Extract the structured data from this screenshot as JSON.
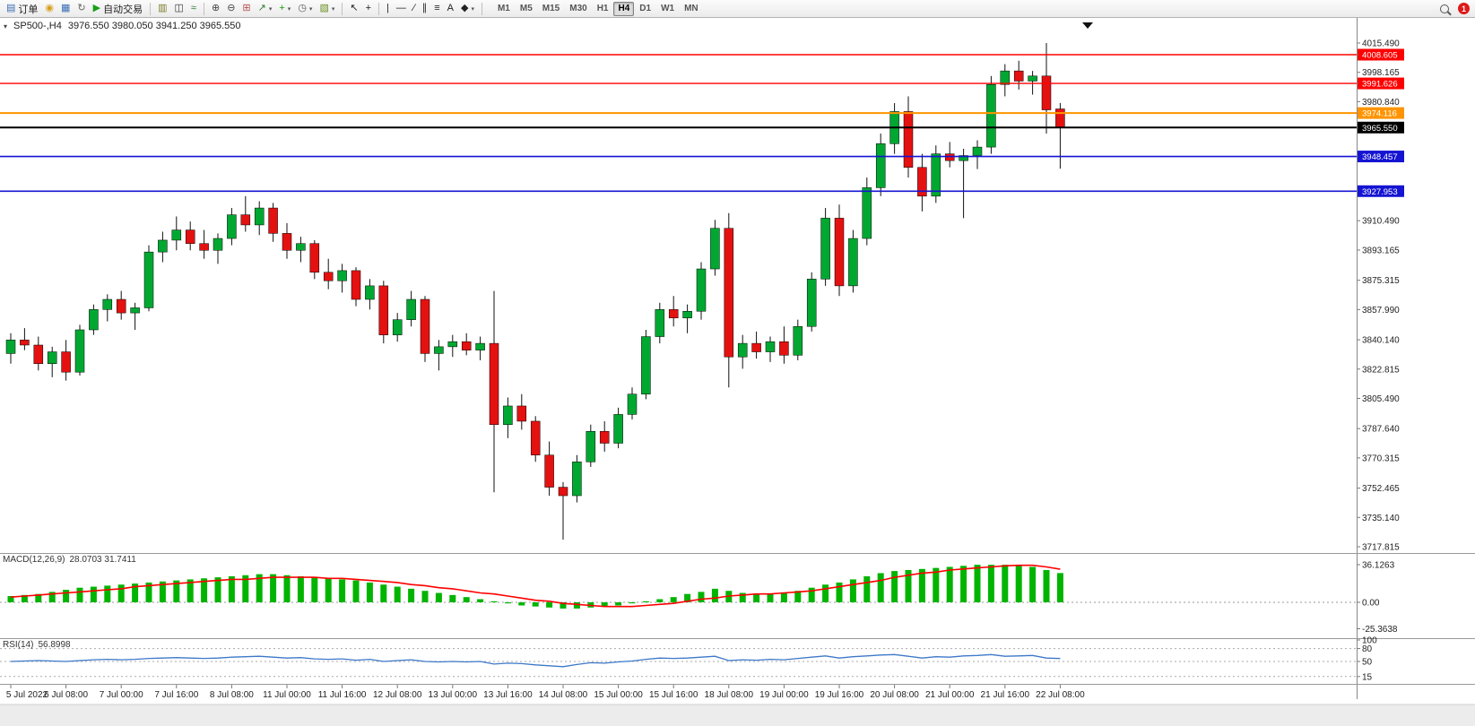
{
  "toolbar": {
    "items": [
      {
        "name": "orders",
        "label": "订单"
      },
      {
        "name": "new-order"
      },
      {
        "name": "chart-window"
      },
      {
        "name": "refresh"
      },
      {
        "name": "autotrading",
        "label": "自动交易"
      },
      {
        "sep": true
      },
      {
        "name": "bars-chart"
      },
      {
        "name": "candles-chart"
      },
      {
        "name": "line-chart"
      },
      {
        "sep": true
      },
      {
        "name": "zoom-in"
      },
      {
        "name": "zoom-out"
      },
      {
        "name": "tile-windows"
      },
      {
        "name": "indicators",
        "dropdown": true
      },
      {
        "name": "add-indicator",
        "dropdown": true
      },
      {
        "name": "periods",
        "dropdown": true
      },
      {
        "name": "templates",
        "dropdown": true
      },
      {
        "sep": true
      },
      {
        "name": "cursor"
      },
      {
        "name": "crosshair"
      },
      {
        "sep": true
      },
      {
        "name": "vertical-line"
      },
      {
        "name": "horizontal-line"
      },
      {
        "name": "trendline"
      },
      {
        "name": "channel"
      },
      {
        "name": "fibonacci"
      },
      {
        "name": "text-tool"
      },
      {
        "name": "shapes",
        "dropdown": true
      },
      {
        "sep": true
      }
    ],
    "timeframes": [
      "M1",
      "M5",
      "M15",
      "M30",
      "H1",
      "H4",
      "D1",
      "W1",
      "MN"
    ],
    "active_timeframe": "H4",
    "notification_count": "1"
  },
  "chart_data": {
    "type": "candlestick",
    "symbol": "SP500-",
    "period": "H4",
    "title": "SP500-,H4",
    "ohlc_text": "3976.550 3980.050 3941.250 3965.550",
    "current_bar": {
      "open": 3976.55,
      "high": 3980.05,
      "low": 3941.25,
      "close": 3965.55
    },
    "candle_colors": {
      "up": "#00a832",
      "down": "#e41111"
    },
    "y_axis": {
      "labels": [
        "4015.490",
        "3998.165",
        "3980.840",
        "3910.490",
        "3893.165",
        "3875.315",
        "3857.990",
        "3840.140",
        "3822.815",
        "3805.490",
        "3787.640",
        "3770.315",
        "3752.465",
        "3735.140",
        "3717.815"
      ]
    },
    "x_axis": {
      "bars_per_label": 4,
      "labels": [
        "5 Jul 2022",
        "6 Jul 08:00",
        "7 Jul 00:00",
        "7 Jul 16:00",
        "8 Jul 08:00",
        "11 Jul 00:00",
        "11 Jul 16:00",
        "12 Jul 08:00",
        "13 Jul 00:00",
        "13 Jul 16:00",
        "14 Jul 08:00",
        "15 Jul 00:00",
        "15 Jul 16:00",
        "18 Jul 08:00",
        "19 Jul 00:00",
        "19 Jul 16:00",
        "20 Jul 08:00",
        "21 Jul 00:00",
        "21 Jul 16:00",
        "22 Jul 08:00"
      ]
    },
    "price_lines": [
      {
        "price": 4008.605,
        "label": "4008.605",
        "color": "#ff0000",
        "width": 1.4,
        "role": "resistance-line"
      },
      {
        "price": 3991.626,
        "label": "3991.626",
        "color": "#ff0000",
        "width": 1.4,
        "role": "resistance-line"
      },
      {
        "price": 3974.116,
        "label": "3974.116",
        "color": "#ff9400",
        "width": 2,
        "role": "pivot-line"
      },
      {
        "price": 3965.55,
        "label": "3965.550",
        "color": "#000000",
        "width": 2,
        "role": "current-price-line"
      },
      {
        "price": 3948.457,
        "label": "3948.457",
        "color": "#1414d2",
        "width": 1.6,
        "role": "support-line"
      },
      {
        "price": 3927.953,
        "label": "3927.953",
        "color": "#1414d2",
        "width": 1.6,
        "role": "support-line"
      }
    ],
    "candles": [
      [
        3832,
        3844,
        3826,
        3840
      ],
      [
        3840,
        3847,
        3834,
        3837
      ],
      [
        3837,
        3842,
        3822,
        3826
      ],
      [
        3826,
        3836,
        3818,
        3833
      ],
      [
        3833,
        3840,
        3816,
        3821
      ],
      [
        3821,
        3849,
        3819,
        3846
      ],
      [
        3846,
        3861,
        3843,
        3858
      ],
      [
        3858,
        3867,
        3851,
        3864
      ],
      [
        3864,
        3869,
        3852,
        3856
      ],
      [
        3856,
        3862,
        3846,
        3859
      ],
      [
        3859,
        3896,
        3857,
        3892
      ],
      [
        3892,
        3904,
        3886,
        3899
      ],
      [
        3899,
        3913,
        3893,
        3905
      ],
      [
        3905,
        3910,
        3893,
        3897
      ],
      [
        3897,
        3905,
        3888,
        3893
      ],
      [
        3893,
        3903,
        3885,
        3900
      ],
      [
        3900,
        3918,
        3896,
        3914
      ],
      [
        3914,
        3925,
        3904,
        3908
      ],
      [
        3908,
        3922,
        3902,
        3918
      ],
      [
        3918,
        3921,
        3898,
        3903
      ],
      [
        3903,
        3909,
        3888,
        3893
      ],
      [
        3893,
        3901,
        3886,
        3897
      ],
      [
        3897,
        3899,
        3876,
        3880
      ],
      [
        3880,
        3888,
        3870,
        3875
      ],
      [
        3875,
        3885,
        3868,
        3881
      ],
      [
        3881,
        3883,
        3860,
        3864
      ],
      [
        3864,
        3876,
        3858,
        3872
      ],
      [
        3872,
        3875,
        3838,
        3843
      ],
      [
        3843,
        3856,
        3839,
        3852
      ],
      [
        3852,
        3869,
        3848,
        3864
      ],
      [
        3864,
        3866,
        3827,
        3832
      ],
      [
        3832,
        3840,
        3822,
        3836
      ],
      [
        3836,
        3843,
        3830,
        3839
      ],
      [
        3839,
        3844,
        3831,
        3834
      ],
      [
        3834,
        3842,
        3828,
        3838
      ],
      [
        3838,
        3869,
        3750,
        3790
      ],
      [
        3790,
        3806,
        3782,
        3801
      ],
      [
        3801,
        3808,
        3787,
        3792
      ],
      [
        3792,
        3795,
        3768,
        3772
      ],
      [
        3772,
        3780,
        3748,
        3753
      ],
      [
        3753,
        3756,
        3722,
        3748
      ],
      [
        3748,
        3772,
        3744,
        3768
      ],
      [
        3768,
        3790,
        3765,
        3786
      ],
      [
        3786,
        3792,
        3774,
        3779
      ],
      [
        3779,
        3800,
        3776,
        3796
      ],
      [
        3796,
        3812,
        3793,
        3808
      ],
      [
        3808,
        3846,
        3805,
        3842
      ],
      [
        3842,
        3862,
        3838,
        3858
      ],
      [
        3858,
        3866,
        3848,
        3853
      ],
      [
        3853,
        3861,
        3844,
        3857
      ],
      [
        3857,
        3886,
        3852,
        3882
      ],
      [
        3882,
        3911,
        3878,
        3906
      ],
      [
        3906,
        3915,
        3812,
        3830
      ],
      [
        3830,
        3843,
        3823,
        3838
      ],
      [
        3838,
        3845,
        3829,
        3833
      ],
      [
        3833,
        3842,
        3827,
        3839
      ],
      [
        3839,
        3848,
        3826,
        3831
      ],
      [
        3831,
        3852,
        3828,
        3848
      ],
      [
        3848,
        3880,
        3845,
        3876
      ],
      [
        3876,
        3918,
        3872,
        3912
      ],
      [
        3912,
        3920,
        3866,
        3872
      ],
      [
        3872,
        3905,
        3868,
        3900
      ],
      [
        3900,
        3936,
        3896,
        3930
      ],
      [
        3930,
        3962,
        3925,
        3956
      ],
      [
        3956,
        3980,
        3950,
        3975
      ],
      [
        3975,
        3984,
        3936,
        3942
      ],
      [
        3942,
        3950,
        3916,
        3925
      ],
      [
        3925,
        3955,
        3921,
        3950
      ],
      [
        3950,
        3957,
        3942,
        3946
      ],
      [
        3946,
        3953,
        3912,
        3949
      ],
      [
        3949,
        3958,
        3941,
        3954
      ],
      [
        3954,
        3996,
        3950,
        3991
      ],
      [
        3991,
        4003,
        3984,
        3999
      ],
      [
        3999,
        4005,
        3988,
        3993
      ],
      [
        3993,
        3999,
        3985,
        3996
      ],
      [
        3996,
        4015.5,
        3962,
        3976
      ],
      [
        3976.55,
        3980.05,
        3941.25,
        3965.55
      ]
    ],
    "macd": {
      "label": "MACD(12,26,9)",
      "values_text": "28.0703 31.7411",
      "axis_labels": [
        "36.1263",
        "0.00",
        "-25.3638"
      ],
      "histogram_color": "#00b400",
      "signal_color": "#ff0000",
      "histogram": [
        6,
        7,
        8,
        10,
        12,
        14,
        15,
        16,
        17,
        18,
        19,
        20,
        21,
        22,
        23,
        24,
        25,
        26,
        27,
        27,
        26,
        25,
        24,
        23,
        22,
        21,
        19,
        17,
        15,
        13,
        11,
        9,
        7,
        5,
        3,
        1,
        -1,
        -3,
        -4,
        -5,
        -6,
        -6,
        -5,
        -4,
        -3,
        -1,
        1,
        3,
        5,
        8,
        10,
        13,
        11,
        9,
        8,
        8,
        9,
        11,
        14,
        17,
        19,
        22,
        25,
        28,
        30,
        31,
        32,
        33,
        34,
        35,
        36,
        36,
        36,
        35,
        34,
        31,
        28.07
      ],
      "signal": [
        5,
        6,
        7,
        8,
        9,
        10,
        11,
        12,
        13,
        15,
        16,
        17,
        18,
        19,
        20,
        21,
        22,
        22,
        23,
        24,
        24,
        24,
        24,
        23,
        23,
        22,
        21,
        20,
        19,
        17,
        16,
        14,
        13,
        11,
        9,
        8,
        6,
        4,
        2,
        1,
        -1,
        -2,
        -3,
        -4,
        -4,
        -4,
        -3,
        -2,
        -1,
        1,
        3,
        4,
        6,
        7,
        8,
        8,
        9,
        10,
        11,
        13,
        15,
        17,
        19,
        21,
        24,
        26,
        28,
        29,
        31,
        32,
        33,
        34,
        35,
        35.5,
        35.5,
        34,
        31.74
      ]
    },
    "rsi": {
      "label": "RSI(14)",
      "values_text": "56.8998",
      "axis_labels": [
        "100",
        "80",
        "50",
        "15"
      ],
      "levels": [
        80,
        50,
        15
      ],
      "line_color": "#3c78c8",
      "line": [
        50,
        51,
        52,
        51,
        50,
        52,
        54,
        55,
        54,
        55,
        57,
        58,
        59,
        58,
        57,
        58,
        60,
        61,
        62,
        60,
        58,
        59,
        56,
        55,
        56,
        53,
        55,
        50,
        52,
        54,
        50,
        49,
        50,
        49,
        50,
        44,
        46,
        45,
        42,
        40,
        38,
        43,
        47,
        46,
        49,
        51,
        55,
        58,
        57,
        58,
        60,
        62,
        52,
        54,
        53,
        55,
        54,
        57,
        60,
        63,
        58,
        61,
        63,
        65,
        66,
        62,
        58,
        61,
        60,
        63,
        64,
        66,
        62,
        63,
        64,
        58,
        56.9
      ]
    }
  }
}
